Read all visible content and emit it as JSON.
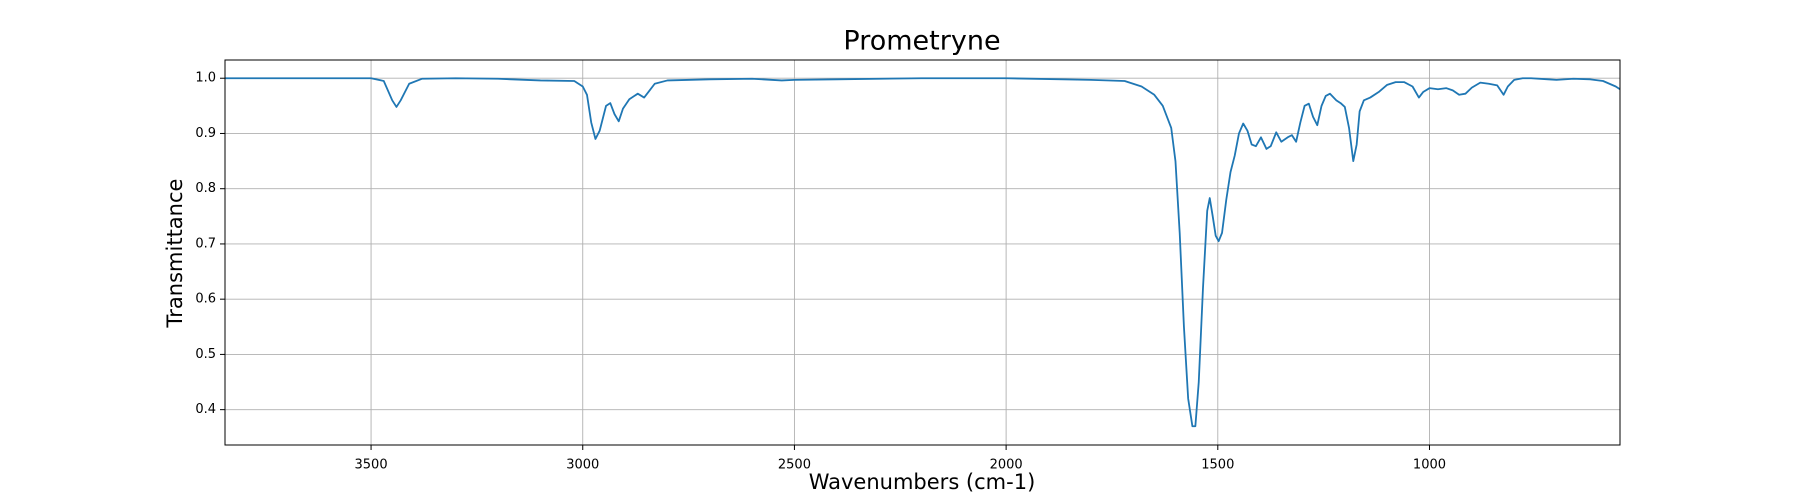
{
  "chart_data": {
    "type": "line",
    "title": "Prometryne",
    "x_label": "Wavenumbers (cm-1)",
    "y_label": "Transmittance",
    "x": [
      3845,
      3700,
      3500,
      3470,
      3450,
      3440,
      3430,
      3410,
      3380,
      3300,
      3200,
      3100,
      3020,
      3000,
      2990,
      2980,
      2970,
      2960,
      2945,
      2935,
      2925,
      2915,
      2905,
      2890,
      2870,
      2855,
      2845,
      2830,
      2800,
      2700,
      2600,
      2530,
      2500,
      2400,
      2200,
      2000,
      1800,
      1720,
      1680,
      1650,
      1630,
      1610,
      1600,
      1590,
      1580,
      1570,
      1560,
      1553,
      1545,
      1535,
      1525,
      1519,
      1512,
      1505,
      1498,
      1490,
      1480,
      1470,
      1460,
      1450,
      1440,
      1430,
      1420,
      1410,
      1398,
      1385,
      1375,
      1362,
      1350,
      1335,
      1325,
      1315,
      1305,
      1295,
      1285,
      1275,
      1265,
      1255,
      1245,
      1235,
      1220,
      1210,
      1200,
      1190,
      1180,
      1172,
      1165,
      1155,
      1140,
      1120,
      1100,
      1080,
      1060,
      1040,
      1025,
      1015,
      1000,
      980,
      960,
      945,
      930,
      915,
      900,
      880,
      860,
      840,
      825,
      815,
      800,
      780,
      760,
      720,
      700,
      660,
      620,
      590,
      560,
      550
    ],
    "series": [
      {
        "name": "Prometryne",
        "color": "#1f77b4",
        "values": [
          1.0,
          1.0,
          1.0,
          0.995,
          0.96,
          0.948,
          0.96,
          0.99,
          0.999,
          1.0,
          0.999,
          0.996,
          0.995,
          0.985,
          0.97,
          0.92,
          0.89,
          0.905,
          0.95,
          0.955,
          0.935,
          0.922,
          0.945,
          0.962,
          0.972,
          0.965,
          0.975,
          0.99,
          0.996,
          0.998,
          0.999,
          0.996,
          0.997,
          0.998,
          1.0,
          1.0,
          0.997,
          0.995,
          0.985,
          0.97,
          0.95,
          0.91,
          0.85,
          0.72,
          0.55,
          0.42,
          0.37,
          0.37,
          0.45,
          0.62,
          0.76,
          0.783,
          0.75,
          0.715,
          0.705,
          0.72,
          0.78,
          0.83,
          0.86,
          0.9,
          0.918,
          0.905,
          0.88,
          0.877,
          0.893,
          0.872,
          0.877,
          0.902,
          0.885,
          0.893,
          0.897,
          0.885,
          0.92,
          0.95,
          0.954,
          0.93,
          0.915,
          0.95,
          0.968,
          0.972,
          0.96,
          0.955,
          0.948,
          0.91,
          0.85,
          0.88,
          0.94,
          0.96,
          0.965,
          0.975,
          0.988,
          0.993,
          0.993,
          0.985,
          0.965,
          0.975,
          0.982,
          0.98,
          0.982,
          0.978,
          0.97,
          0.972,
          0.983,
          0.992,
          0.99,
          0.987,
          0.97,
          0.985,
          0.997,
          1.0,
          1.0,
          0.998,
          0.997,
          0.999,
          0.998,
          0.995,
          0.985,
          0.98
        ]
      }
    ],
    "xlim": [
      3845,
      550
    ],
    "ylim": [
      0.336,
      1.033
    ],
    "xticks": [
      3500,
      3000,
      2500,
      2000,
      1500,
      1000
    ],
    "yticks": [
      0.4,
      0.5,
      0.6,
      0.7,
      0.8,
      0.9,
      {
        "value": 1,
        "label": "1.0"
      }
    ],
    "grid": true
  }
}
